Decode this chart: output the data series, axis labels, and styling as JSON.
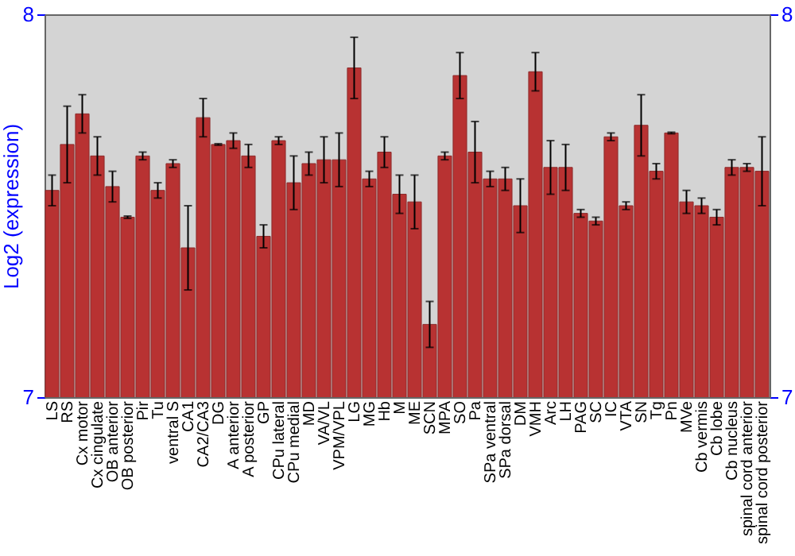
{
  "chart_data": {
    "type": "bar",
    "ylabel": "Log2 (expression)",
    "categories": [
      "LS",
      "RS",
      "Cx motor",
      "Cx cingulate",
      "OB anterior",
      "OB posterior",
      "Pir",
      "Tu",
      "ventral S",
      "CA1",
      "CA2/CA3",
      "DG",
      "A anterior",
      "A posterior",
      "GP",
      "CPu lateral",
      "CPu medial",
      "MD",
      "VA/VL",
      "VPM/VPL",
      "LG",
      "MG",
      "Hb",
      "M",
      "ME",
      "SCN",
      "MPA",
      "SO",
      "Pa",
      "SPa ventral",
      "SPa dorsal",
      "DM",
      "VMH",
      "Arc",
      "LH",
      "PAG",
      "SC",
      "IC",
      "VTA",
      "SN",
      "Tg",
      "Pn",
      "MVe",
      "Cb vermis",
      "Cb lobe",
      "Cb nucleus",
      "spinal cord anterior",
      "spinal cord posterior"
    ],
    "values": [
      7.54,
      7.66,
      7.74,
      7.63,
      7.55,
      7.47,
      7.63,
      7.54,
      7.61,
      7.39,
      7.73,
      7.66,
      7.67,
      7.63,
      7.42,
      7.67,
      7.56,
      7.61,
      7.62,
      7.62,
      7.86,
      7.57,
      7.64,
      7.53,
      7.51,
      7.19,
      7.63,
      7.84,
      7.64,
      7.57,
      7.57,
      7.5,
      7.85,
      7.6,
      7.6,
      7.48,
      7.46,
      7.68,
      7.5,
      7.71,
      7.59,
      7.69,
      7.51,
      7.5,
      7.47,
      7.6,
      7.6,
      7.59
    ],
    "errors": [
      0.04,
      0.1,
      0.05,
      0.05,
      0.04,
      0.003,
      0.01,
      0.02,
      0.01,
      0.11,
      0.05,
      0.002,
      0.02,
      0.03,
      0.03,
      0.01,
      0.07,
      0.03,
      0.06,
      0.07,
      0.08,
      0.02,
      0.04,
      0.05,
      0.07,
      0.06,
      0.01,
      0.06,
      0.08,
      0.02,
      0.03,
      0.07,
      0.05,
      0.07,
      0.06,
      0.01,
      0.01,
      0.01,
      0.01,
      0.08,
      0.02,
      0.002,
      0.03,
      0.02,
      0.02,
      0.02,
      0.01,
      0.09
    ],
    "color": "#b83232",
    "ylim": [
      7,
      8
    ],
    "yticks": [
      7,
      8
    ],
    "y2lim": [
      7,
      8
    ],
    "y2ticks": [
      7,
      8
    ],
    "grid": false
  }
}
